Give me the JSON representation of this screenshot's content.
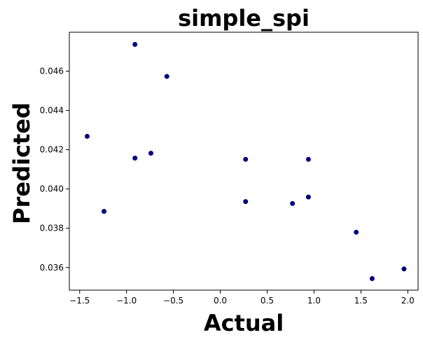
{
  "chart_data": {
    "type": "scatter",
    "title": "simple_spi",
    "xlabel": "Actual",
    "ylabel": "Predicted",
    "xlim": [
      -1.61,
      2.11
    ],
    "ylim": [
      0.03485,
      0.04798
    ],
    "xticks": [
      -1.5,
      -1.0,
      -0.5,
      0.0,
      0.5,
      1.0,
      1.5,
      2.0
    ],
    "xtick_labels": [
      "−1.5",
      "−1.0",
      "−0.5",
      "0.0",
      "0.5",
      "1.0",
      "1.5",
      "2.0"
    ],
    "yticks": [
      0.036,
      0.038,
      0.04,
      0.042,
      0.044,
      0.046
    ],
    "ytick_labels": [
      "0.036",
      "0.038",
      "0.040",
      "0.042",
      "0.044",
      "0.046"
    ],
    "grid": false,
    "marker_color": "#000080",
    "points": [
      {
        "x": -1.42,
        "y": 0.04268
      },
      {
        "x": -1.24,
        "y": 0.03886
      },
      {
        "x": -0.91,
        "y": 0.04736
      },
      {
        "x": -0.91,
        "y": 0.04157
      },
      {
        "x": -0.74,
        "y": 0.04182
      },
      {
        "x": -0.57,
        "y": 0.04573
      },
      {
        "x": 0.27,
        "y": 0.04151
      },
      {
        "x": 0.27,
        "y": 0.03936
      },
      {
        "x": 0.77,
        "y": 0.03926
      },
      {
        "x": 0.94,
        "y": 0.04151
      },
      {
        "x": 0.94,
        "y": 0.03959
      },
      {
        "x": 1.45,
        "y": 0.0378
      },
      {
        "x": 1.62,
        "y": 0.03544
      },
      {
        "x": 1.96,
        "y": 0.03593
      }
    ]
  }
}
